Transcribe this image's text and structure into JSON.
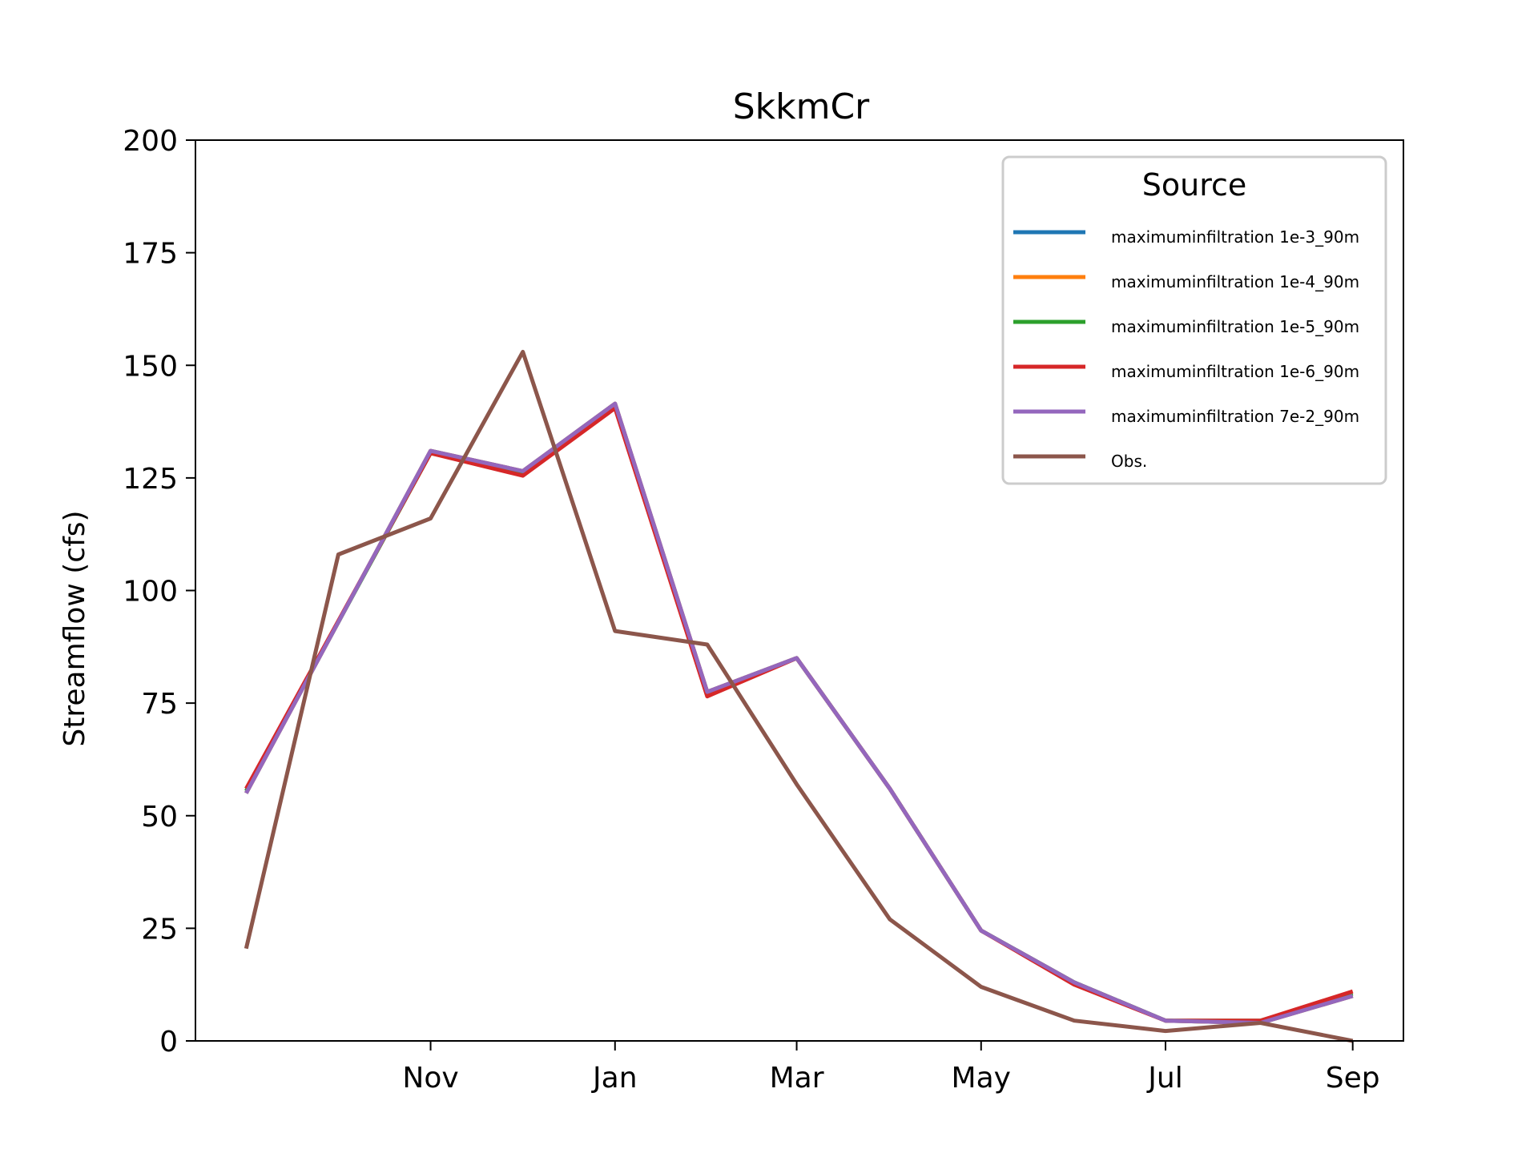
{
  "chart_data": {
    "type": "line",
    "title": "SkkmCr",
    "xlabel": "",
    "ylabel": "Streamflow (cfs)",
    "ylim": [
      0,
      200
    ],
    "yticks": [
      0,
      25,
      50,
      75,
      100,
      125,
      150,
      175,
      200
    ],
    "xticks": [
      {
        "label": "Nov",
        "x": 1.0
      },
      {
        "label": "Jan",
        "x": 3.0
      },
      {
        "label": "Mar",
        "x": 4.97
      },
      {
        "label": "May",
        "x": 6.97
      },
      {
        "label": "Jul",
        "x": 8.97
      },
      {
        "label": "Sep",
        "x": 11.0
      }
    ],
    "xlim": [
      -1.55,
      11.55
    ],
    "x": [
      -1.0,
      0.0,
      1.0,
      2.0,
      3.0,
      4.0,
      5.0,
      6.0,
      7.0,
      8.0,
      9.0,
      10.0,
      11.0
    ],
    "legend": {
      "title": "Source",
      "placement": "upper-right"
    },
    "grid": false,
    "series": [
      {
        "name": "maximuminfiltration 1e-3_90m",
        "color": "#1f77b4",
        "x": [
          -1.0,
          1.0,
          2.0,
          3.0,
          4.0,
          4.97,
          5.98,
          6.97,
          7.98,
          8.97,
          10.0,
          11.0
        ],
        "values": [
          55,
          131,
          126.5,
          141.5,
          77.5,
          85,
          56,
          24.5,
          13,
          4.5,
          4,
          10
        ]
      },
      {
        "name": "maximuminfiltration 1e-4_90m",
        "color": "#ff7f0e",
        "x": [
          -1.0,
          1.0,
          2.0,
          3.0,
          4.0,
          4.97,
          5.98,
          6.97,
          7.98,
          8.97,
          10.0,
          11.0
        ],
        "values": [
          55,
          131,
          126.5,
          141.5,
          77.5,
          85,
          56,
          24.5,
          13,
          4.5,
          4,
          10
        ]
      },
      {
        "name": "maximuminfiltration 1e-5_90m",
        "color": "#2ca02c",
        "x": [
          -1.0,
          1.0,
          2.0,
          3.0,
          4.0,
          4.97,
          5.98,
          6.97,
          7.98,
          8.97,
          10.0,
          11.0
        ],
        "values": [
          55.5,
          130.5,
          126,
          141,
          77,
          85,
          56,
          24.5,
          13,
          4.5,
          4.5,
          10.5
        ]
      },
      {
        "name": "maximuminfiltration 1e-6_90m",
        "color": "#d62728",
        "x": [
          -1.0,
          1.0,
          2.0,
          3.0,
          4.0,
          4.97,
          5.98,
          6.97,
          7.98,
          8.97,
          10.0,
          11.0
        ],
        "values": [
          56,
          130.5,
          125.5,
          140.5,
          76.5,
          85,
          56,
          24.5,
          12.5,
          4.5,
          4.5,
          11
        ]
      },
      {
        "name": "maximuminfiltration 7e-2_90m",
        "color": "#9467bd",
        "x": [
          -1.0,
          1.0,
          2.0,
          3.0,
          4.0,
          4.97,
          5.98,
          6.97,
          7.98,
          8.97,
          10.0,
          11.0
        ],
        "values": [
          55,
          131,
          126.5,
          141.5,
          77.5,
          85,
          56,
          24.5,
          13,
          4.5,
          4,
          10
        ]
      },
      {
        "name": "Obs.",
        "color": "#8c564b",
        "x": [
          -1.0,
          0.0,
          1.0,
          2.0,
          3.0,
          4.0,
          4.97,
          5.98,
          6.97,
          7.98,
          8.97,
          10.0,
          11.0
        ],
        "values": [
          20.5,
          108,
          116,
          153,
          91,
          88,
          57,
          27,
          12,
          4.5,
          2.2,
          4,
          0
        ]
      }
    ]
  }
}
